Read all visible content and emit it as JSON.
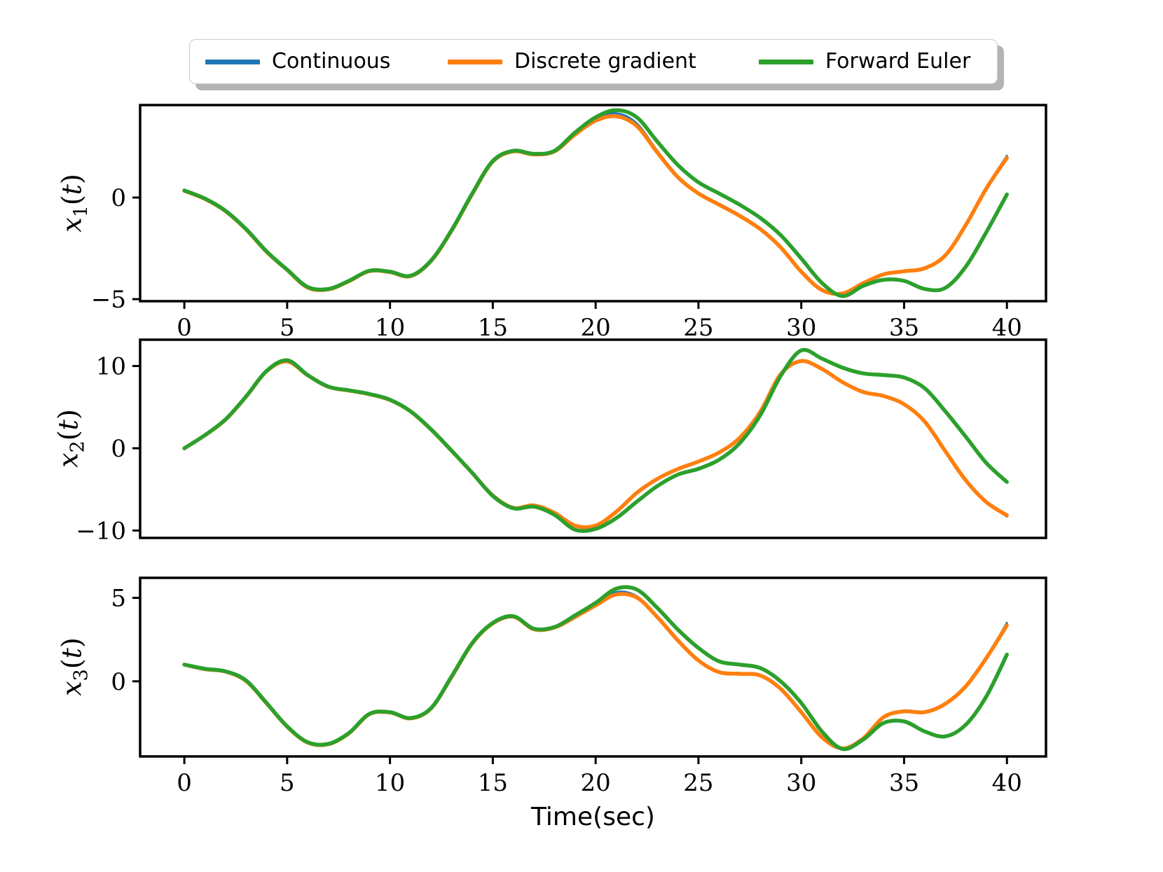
{
  "xlabel": "Time(sec)",
  "legend": {
    "items": [
      {
        "label": "Continuous",
        "color": "#1f77b4"
      },
      {
        "label": "Discrete gradient",
        "color": "#ff7f0e"
      },
      {
        "label": "Forward Euler",
        "color": "#2ca02c"
      }
    ]
  },
  "chart_data": [
    {
      "type": "line",
      "ylabel": {
        "base": "x",
        "sub": "1",
        "rest": "(t)"
      },
      "xlim": [
        -2.15,
        41.9
      ],
      "ylim": [
        -5.1,
        4.55
      ],
      "xticks": [
        0,
        5,
        10,
        15,
        20,
        25,
        30,
        35,
        40
      ],
      "yticks": [
        0,
        -5
      ],
      "show_xticks": true,
      "show_xticklabels": true,
      "x": [
        0,
        1,
        2,
        3,
        4,
        5,
        6,
        7,
        8,
        9,
        10,
        11,
        12,
        13,
        14,
        15,
        16,
        17,
        18,
        19,
        20,
        21,
        22,
        23,
        24,
        25,
        26,
        27,
        28,
        29,
        30,
        31,
        32,
        33,
        34,
        35,
        36,
        37,
        38,
        39,
        40
      ],
      "series": [
        {
          "name": "Continuous",
          "color": "#1f77b4",
          "width": 3,
          "values": [
            0.35,
            -0.05,
            -0.65,
            -1.55,
            -2.65,
            -3.55,
            -4.4,
            -4.5,
            -4.1,
            -3.6,
            -3.65,
            -3.85,
            -3.1,
            -1.6,
            0.2,
            1.8,
            2.3,
            2.15,
            2.3,
            3.15,
            3.85,
            4.15,
            3.65,
            2.3,
            1.05,
            0.25,
            -0.3,
            -0.85,
            -1.5,
            -2.4,
            -3.6,
            -4.5,
            -4.7,
            -4.2,
            -3.75,
            -3.6,
            -3.45,
            -2.8,
            -1.3,
            0.5,
            2.05
          ]
        },
        {
          "name": "Discrete gradient",
          "color": "#ff7f0e",
          "width": 5.5,
          "values": [
            0.33,
            -0.07,
            -0.67,
            -1.57,
            -2.67,
            -3.57,
            -4.43,
            -4.52,
            -4.12,
            -3.62,
            -3.67,
            -3.87,
            -3.12,
            -1.63,
            0.17,
            1.77,
            2.27,
            2.12,
            2.27,
            3.1,
            3.78,
            4.0,
            3.52,
            2.22,
            1.0,
            0.2,
            -0.35,
            -0.9,
            -1.55,
            -2.45,
            -3.65,
            -4.55,
            -4.72,
            -4.22,
            -3.78,
            -3.63,
            -3.48,
            -2.85,
            -1.35,
            0.45,
            1.95
          ]
        },
        {
          "name": "Forward Euler",
          "color": "#2ca02c",
          "width": 5.5,
          "values": [
            0.35,
            -0.05,
            -0.65,
            -1.55,
            -2.65,
            -3.55,
            -4.4,
            -4.5,
            -4.1,
            -3.6,
            -3.65,
            -3.85,
            -3.1,
            -1.6,
            0.2,
            1.8,
            2.3,
            2.15,
            2.3,
            3.2,
            3.95,
            4.3,
            3.95,
            2.75,
            1.6,
            0.75,
            0.2,
            -0.35,
            -1.0,
            -1.85,
            -3.0,
            -4.2,
            -4.85,
            -4.35,
            -4.05,
            -4.1,
            -4.5,
            -4.45,
            -3.4,
            -1.7,
            0.15
          ]
        }
      ]
    },
    {
      "type": "line",
      "ylabel": {
        "base": "x",
        "sub": "2",
        "rest": "(t)"
      },
      "xlim": [
        -2.15,
        41.9
      ],
      "ylim": [
        -10.9,
        13.2
      ],
      "xticks": [
        0,
        5,
        10,
        15,
        20,
        25,
        30,
        35,
        40
      ],
      "yticks": [
        10,
        0,
        -10
      ],
      "show_xticks": false,
      "show_xticklabels": false,
      "x": [
        0,
        1,
        2,
        3,
        4,
        5,
        6,
        7,
        8,
        9,
        10,
        11,
        12,
        13,
        14,
        15,
        16,
        17,
        18,
        19,
        20,
        21,
        22,
        23,
        24,
        25,
        26,
        27,
        28,
        29,
        30,
        31,
        32,
        33,
        34,
        35,
        36,
        37,
        38,
        39,
        40
      ],
      "series": [
        {
          "name": "Continuous",
          "color": "#1f77b4",
          "width": 3,
          "values": [
            0,
            1.6,
            3.5,
            6.3,
            9.4,
            10.6,
            8.9,
            7.5,
            7.05,
            6.6,
            5.9,
            4.5,
            2.3,
            -0.3,
            -3.0,
            -5.8,
            -7.3,
            -7.0,
            -7.9,
            -9.5,
            -9.5,
            -7.8,
            -5.5,
            -3.8,
            -2.6,
            -1.7,
            -0.6,
            1.2,
            4.4,
            9.0,
            10.7,
            9.7,
            8.1,
            6.9,
            6.4,
            5.4,
            3.3,
            -0.3,
            -3.9,
            -6.6,
            -8.3
          ]
        },
        {
          "name": "Discrete gradient",
          "color": "#ff7f0e",
          "width": 5.5,
          "values": [
            0,
            1.58,
            3.47,
            6.27,
            9.37,
            10.55,
            8.87,
            7.47,
            7.02,
            6.57,
            5.87,
            4.47,
            2.27,
            -0.32,
            -3.0,
            -5.75,
            -7.25,
            -6.95,
            -7.85,
            -9.4,
            -9.4,
            -7.72,
            -5.42,
            -3.72,
            -2.52,
            -1.62,
            -0.52,
            1.25,
            4.42,
            9.0,
            10.6,
            9.65,
            8.05,
            6.85,
            6.35,
            5.35,
            3.25,
            -0.35,
            -3.9,
            -6.55,
            -8.15
          ]
        },
        {
          "name": "Forward Euler",
          "color": "#2ca02c",
          "width": 5.5,
          "values": [
            0,
            1.6,
            3.5,
            6.3,
            9.4,
            10.7,
            8.9,
            7.5,
            7.05,
            6.6,
            5.9,
            4.5,
            2.3,
            -0.3,
            -3.0,
            -5.8,
            -7.3,
            -7.1,
            -8.1,
            -9.9,
            -9.8,
            -8.5,
            -6.5,
            -4.6,
            -3.2,
            -2.5,
            -1.4,
            0.6,
            4.0,
            8.8,
            11.9,
            10.9,
            9.8,
            9.1,
            8.9,
            8.6,
            7.3,
            4.5,
            1.4,
            -1.8,
            -4.1
          ]
        }
      ]
    },
    {
      "type": "line",
      "ylabel": {
        "base": "x",
        "sub": "3",
        "rest": "(t)"
      },
      "xlim": [
        -2.15,
        41.9
      ],
      "ylim": [
        -4.5,
        6.2
      ],
      "xticks": [
        0,
        5,
        10,
        15,
        20,
        25,
        30,
        35,
        40
      ],
      "yticks": [
        5,
        0
      ],
      "show_xticks": true,
      "show_xticklabels": true,
      "x": [
        0,
        1,
        2,
        3,
        4,
        5,
        6,
        7,
        8,
        9,
        10,
        11,
        12,
        13,
        14,
        15,
        16,
        17,
        18,
        19,
        20,
        21,
        22,
        23,
        24,
        25,
        26,
        27,
        28,
        29,
        30,
        31,
        32,
        33,
        34,
        35,
        36,
        37,
        38,
        39,
        40
      ],
      "series": [
        {
          "name": "Continuous",
          "color": "#1f77b4",
          "width": 3,
          "values": [
            1.0,
            0.75,
            0.6,
            0.05,
            -1.3,
            -2.7,
            -3.65,
            -3.75,
            -3.1,
            -1.95,
            -1.85,
            -2.2,
            -1.6,
            0.3,
            2.3,
            3.5,
            3.9,
            3.15,
            3.25,
            3.9,
            4.6,
            5.35,
            5.1,
            3.9,
            2.5,
            1.3,
            0.6,
            0.5,
            0.4,
            -0.4,
            -1.8,
            -3.3,
            -4.0,
            -3.4,
            -2.1,
            -1.75,
            -1.8,
            -1.3,
            -0.25,
            1.45,
            3.5
          ]
        },
        {
          "name": "Discrete gradient",
          "color": "#ff7f0e",
          "width": 5.5,
          "values": [
            1.0,
            0.73,
            0.58,
            0.02,
            -1.32,
            -2.72,
            -3.67,
            -3.77,
            -3.12,
            -1.97,
            -1.87,
            -2.22,
            -1.62,
            0.27,
            2.27,
            3.47,
            3.87,
            3.12,
            3.22,
            3.85,
            4.55,
            5.2,
            5.02,
            3.85,
            2.45,
            1.25,
            0.55,
            0.45,
            0.35,
            -0.45,
            -1.85,
            -3.35,
            -4.02,
            -3.43,
            -2.15,
            -1.8,
            -1.85,
            -1.35,
            -0.3,
            1.4,
            3.35
          ]
        },
        {
          "name": "Forward Euler",
          "color": "#2ca02c",
          "width": 5.5,
          "values": [
            1.0,
            0.75,
            0.6,
            0.05,
            -1.3,
            -2.7,
            -3.65,
            -3.75,
            -3.1,
            -1.95,
            -1.85,
            -2.2,
            -1.6,
            0.3,
            2.3,
            3.5,
            3.9,
            3.15,
            3.25,
            3.95,
            4.7,
            5.55,
            5.5,
            4.4,
            3.1,
            2.0,
            1.2,
            1.0,
            0.8,
            0.0,
            -1.3,
            -3.0,
            -4.05,
            -3.5,
            -2.5,
            -2.4,
            -3.0,
            -3.3,
            -2.6,
            -0.9,
            1.6
          ]
        }
      ]
    }
  ]
}
